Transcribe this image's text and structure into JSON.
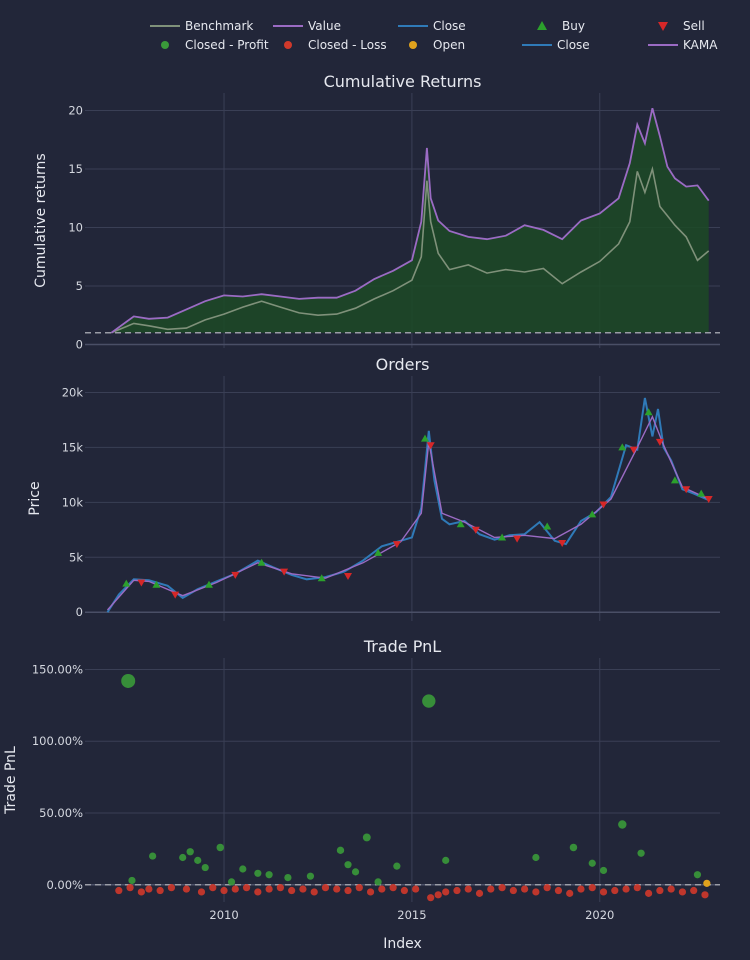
{
  "colors": {
    "background": "#222639",
    "grid": "#3a3f55",
    "benchmark": "#7f917a",
    "value": "#9b6bc4",
    "close": "#2f7ab8",
    "buy": "#2ca02c",
    "sell": "#d62728",
    "profit": "#3a9a3a",
    "loss": "#d0392b",
    "open": "#e0a21d",
    "fill": "#1c4a26"
  },
  "legend": {
    "items": [
      {
        "label": "Benchmark",
        "kind": "line",
        "color": "#7f917a"
      },
      {
        "label": "Value",
        "kind": "line",
        "color": "#9b6bc4"
      },
      {
        "label": "Close",
        "kind": "line",
        "color": "#2f7ab8"
      },
      {
        "label": "Buy",
        "kind": "triangle-up",
        "color": "#2ca02c"
      },
      {
        "label": "Sell",
        "kind": "triangle-down",
        "color": "#d62728"
      },
      {
        "label": "Closed - Profit",
        "kind": "dot",
        "color": "#3a9a3a"
      },
      {
        "label": "Closed - Loss",
        "kind": "dot",
        "color": "#d0392b"
      },
      {
        "label": "Open",
        "kind": "dot",
        "color": "#e0a21d"
      },
      {
        "label": "Close",
        "kind": "line",
        "color": "#2f7ab8"
      },
      {
        "label": "KAMA",
        "kind": "line",
        "color": "#9b6bc4"
      }
    ]
  },
  "chart_data": [
    {
      "type": "line",
      "title": "Cumulative Returns",
      "xlabel": "",
      "ylabel": "Cumulative returns",
      "xlim": [
        2006.3,
        2023.2
      ],
      "ylim": [
        -0.3,
        21.5
      ],
      "yticks": [
        0,
        5,
        10,
        15,
        20
      ],
      "ytick_labels": [
        "0",
        "5",
        "10",
        "15",
        "20"
      ],
      "xticks": [
        2010,
        2015,
        2020
      ],
      "baseline": 1,
      "series": [
        {
          "name": "Benchmark",
          "x": [
            2007.0,
            2007.6,
            2008.0,
            2008.5,
            2009.0,
            2009.5,
            2010.0,
            2010.5,
            2011.0,
            2011.5,
            2012.0,
            2012.5,
            2013.0,
            2013.5,
            2014.0,
            2014.5,
            2015.0,
            2015.25,
            2015.4,
            2015.5,
            2015.7,
            2016.0,
            2016.5,
            2017.0,
            2017.5,
            2018.0,
            2018.5,
            2019.0,
            2019.5,
            2020.0,
            2020.5,
            2020.8,
            2021.0,
            2021.2,
            2021.4,
            2021.6,
            2021.8,
            2022.0,
            2022.3,
            2022.6,
            2022.9
          ],
          "y": [
            1.0,
            1.8,
            1.6,
            1.3,
            1.4,
            2.1,
            2.6,
            3.2,
            3.7,
            3.2,
            2.7,
            2.5,
            2.6,
            3.1,
            3.9,
            4.6,
            5.5,
            7.5,
            14.0,
            10.5,
            7.8,
            6.4,
            6.8,
            6.1,
            6.4,
            6.2,
            6.5,
            5.2,
            6.2,
            7.1,
            8.6,
            10.5,
            14.8,
            13.0,
            15.0,
            11.8,
            11.0,
            10.2,
            9.2,
            7.2,
            8.0
          ]
        },
        {
          "name": "Value",
          "x": [
            2007.0,
            2007.6,
            2008.0,
            2008.5,
            2009.0,
            2009.5,
            2010.0,
            2010.5,
            2011.0,
            2011.5,
            2012.0,
            2012.5,
            2013.0,
            2013.5,
            2014.0,
            2014.5,
            2015.0,
            2015.25,
            2015.4,
            2015.5,
            2015.7,
            2016.0,
            2016.5,
            2017.0,
            2017.5,
            2018.0,
            2018.5,
            2019.0,
            2019.5,
            2020.0,
            2020.5,
            2020.8,
            2021.0,
            2021.2,
            2021.4,
            2021.6,
            2021.8,
            2022.0,
            2022.3,
            2022.6,
            2022.9
          ],
          "y": [
            1.0,
            2.4,
            2.2,
            2.3,
            3.0,
            3.7,
            4.2,
            4.1,
            4.3,
            4.1,
            3.9,
            4.0,
            4.0,
            4.6,
            5.6,
            6.3,
            7.2,
            10.5,
            16.8,
            12.5,
            10.6,
            9.7,
            9.2,
            9.0,
            9.3,
            10.2,
            9.8,
            9.0,
            10.6,
            11.2,
            12.5,
            15.5,
            18.8,
            17.2,
            20.2,
            17.8,
            15.2,
            14.2,
            13.5,
            13.6,
            12.3
          ]
        }
      ]
    },
    {
      "type": "line",
      "title": "Orders",
      "xlabel": "",
      "ylabel": "Price",
      "xlim": [
        2006.3,
        2023.2
      ],
      "ylim": [
        -800,
        21500
      ],
      "yticks": [
        0,
        5000,
        10000,
        15000,
        20000
      ],
      "ytick_labels": [
        "0",
        "5k",
        "10k",
        "15k",
        "20k"
      ],
      "xticks": [
        2010,
        2015,
        2020
      ],
      "series": [
        {
          "name": "Close",
          "x": [
            2006.9,
            2007.2,
            2007.6,
            2008.0,
            2008.5,
            2008.9,
            2009.3,
            2009.8,
            2010.3,
            2010.9,
            2011.3,
            2011.8,
            2012.2,
            2012.7,
            2013.2,
            2013.7,
            2014.2,
            2014.7,
            2015.0,
            2015.25,
            2015.45,
            2015.6,
            2015.8,
            2016.0,
            2016.4,
            2016.8,
            2017.2,
            2017.6,
            2018.0,
            2018.4,
            2018.8,
            2019.1,
            2019.5,
            2019.9,
            2020.3,
            2020.7,
            2021.0,
            2021.2,
            2021.4,
            2021.55,
            2021.7,
            2021.9,
            2022.2,
            2022.5,
            2022.9
          ],
          "y": [
            0,
            1600,
            3000,
            2900,
            2400,
            1300,
            2100,
            2800,
            3500,
            4700,
            4100,
            3400,
            3000,
            3200,
            3700,
            4700,
            6000,
            6500,
            6800,
            9500,
            16500,
            12000,
            8500,
            8000,
            8300,
            7100,
            6600,
            7000,
            7100,
            8200,
            6500,
            6200,
            8300,
            9100,
            10500,
            15200,
            14800,
            19500,
            16000,
            18500,
            15000,
            13800,
            11200,
            10800,
            10200
          ]
        },
        {
          "name": "KAMA",
          "x": [
            2006.9,
            2007.6,
            2008.0,
            2008.9,
            2009.8,
            2010.9,
            2011.8,
            2012.7,
            2013.7,
            2014.7,
            2015.25,
            2015.45,
            2015.8,
            2016.4,
            2017.2,
            2018.0,
            2018.8,
            2019.5,
            2020.3,
            2021.0,
            2021.4,
            2021.7,
            2022.2,
            2022.9
          ],
          "y": [
            200,
            2900,
            2800,
            1500,
            2700,
            4500,
            3500,
            3100,
            4500,
            6400,
            9000,
            15500,
            9000,
            8200,
            6800,
            7000,
            6700,
            8000,
            10300,
            15000,
            17800,
            15200,
            11400,
            10300
          ]
        }
      ],
      "markers": {
        "buy": {
          "name": "Buy",
          "x": [
            2007.4,
            2008.2,
            2009.6,
            2011.0,
            2012.6,
            2014.1,
            2015.35,
            2016.3,
            2017.4,
            2018.6,
            2019.8,
            2020.6,
            2021.3,
            2022.0,
            2022.7
          ],
          "y": [
            2600,
            2500,
            2500,
            4500,
            3100,
            5400,
            15800,
            8000,
            6800,
            7800,
            8900,
            15000,
            18200,
            12000,
            10800
          ]
        },
        "sell": {
          "name": "Sell",
          "x": [
            2007.8,
            2008.7,
            2010.3,
            2011.6,
            2013.3,
            2014.6,
            2015.5,
            2016.7,
            2017.8,
            2019.0,
            2020.1,
            2020.9,
            2021.6,
            2022.3,
            2022.9
          ],
          "y": [
            2700,
            1600,
            3400,
            3700,
            3300,
            6200,
            15200,
            7500,
            6700,
            6300,
            9800,
            14800,
            15500,
            11200,
            10300
          ]
        }
      }
    },
    {
      "type": "scatter",
      "title": "Trade PnL",
      "xlabel": "Index",
      "ylabel": "Trade PnL",
      "xlim": [
        2006.3,
        2023.2
      ],
      "ylim": [
        -12,
        158
      ],
      "yticks": [
        0,
        50,
        100,
        150
      ],
      "ytick_labels": [
        "0.00%",
        "50.00%",
        "100.00%",
        "150.00%"
      ],
      "xticks": [
        2010,
        2015,
        2020
      ],
      "xtick_labels": [
        "2010",
        "2015",
        "2020"
      ],
      "baseline": 0,
      "series": [
        {
          "name": "Closed - Profit",
          "x": [
            2007.45,
            2007.55,
            2008.1,
            2008.9,
            2009.1,
            2009.3,
            2009.5,
            2009.9,
            2010.2,
            2010.5,
            2010.9,
            2011.2,
            2011.7,
            2012.3,
            2013.1,
            2013.3,
            2013.5,
            2013.8,
            2014.1,
            2014.6,
            2015.45,
            2015.9,
            2018.3,
            2019.3,
            2019.8,
            2020.1,
            2020.6,
            2021.1,
            2022.6
          ],
          "y": [
            142,
            3,
            20,
            19,
            23,
            17,
            12,
            26,
            2,
            11,
            8,
            7,
            5,
            6,
            24,
            14,
            9,
            33,
            2,
            13,
            128,
            17,
            19,
            26,
            15,
            10,
            42,
            22,
            7
          ]
        },
        {
          "name": "Closed - Loss",
          "x": [
            2007.2,
            2007.5,
            2007.8,
            2008.0,
            2008.3,
            2008.6,
            2009.0,
            2009.4,
            2009.7,
            2010.0,
            2010.3,
            2010.6,
            2010.9,
            2011.2,
            2011.5,
            2011.8,
            2012.1,
            2012.4,
            2012.7,
            2013.0,
            2013.3,
            2013.6,
            2013.9,
            2014.2,
            2014.5,
            2014.8,
            2015.1,
            2015.5,
            2015.7,
            2015.9,
            2016.2,
            2016.5,
            2016.8,
            2017.1,
            2017.4,
            2017.7,
            2018.0,
            2018.3,
            2018.6,
            2018.9,
            2019.2,
            2019.5,
            2019.8,
            2020.1,
            2020.4,
            2020.7,
            2021.0,
            2021.3,
            2021.6,
            2021.9,
            2022.2,
            2022.5,
            2022.8
          ],
          "y": [
            -4,
            -2,
            -5,
            -3,
            -4,
            -2,
            -3,
            -5,
            -2,
            -4,
            -3,
            -2,
            -5,
            -3,
            -2,
            -4,
            -3,
            -5,
            -2,
            -3,
            -4,
            -2,
            -5,
            -3,
            -2,
            -4,
            -3,
            -9,
            -7,
            -5,
            -4,
            -3,
            -6,
            -3,
            -2,
            -4,
            -3,
            -5,
            -2,
            -4,
            -6,
            -3,
            -2,
            -5,
            -4,
            -3,
            -2,
            -6,
            -4,
            -3,
            -5,
            -4,
            -7
          ]
        },
        {
          "name": "Open",
          "x": [
            2022.85
          ],
          "y": [
            1
          ]
        }
      ]
    }
  ]
}
